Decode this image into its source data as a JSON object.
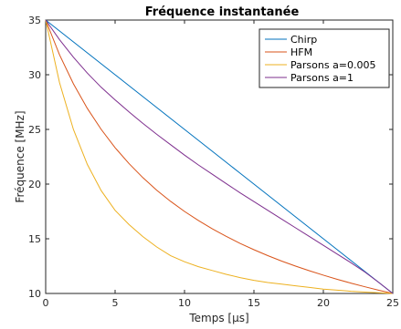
{
  "chart_data": {
    "type": "line",
    "title": "Fréquence instantanée",
    "xlabel": "Temps [µs]",
    "ylabel": "Fréquence [MHz]",
    "xlim": [
      0,
      25
    ],
    "ylim": [
      10,
      35
    ],
    "xticks": [
      "0",
      "5",
      "10",
      "15",
      "20",
      "25"
    ],
    "yticks": [
      "10",
      "15",
      "20",
      "25",
      "30",
      "35"
    ],
    "grid": false,
    "legend_position": "top-right",
    "x": [
      0,
      1,
      2,
      3,
      4,
      5,
      6,
      7,
      8,
      9,
      10,
      11,
      12,
      13,
      14,
      15,
      16,
      17,
      18,
      19,
      20,
      21,
      22,
      23,
      24,
      25
    ],
    "series": [
      {
        "name": "Chirp",
        "color": "#0072bd",
        "values": [
          35.0,
          34.0,
          33.0,
          32.0,
          31.0,
          30.0,
          29.0,
          28.0,
          27.0,
          26.0,
          25.0,
          24.0,
          23.0,
          22.0,
          21.0,
          20.0,
          19.0,
          18.0,
          17.0,
          16.0,
          15.0,
          14.0,
          13.0,
          12.0,
          11.0,
          10.0
        ]
      },
      {
        "name": "HFM",
        "color": "#d95319",
        "values": [
          35.0,
          31.82,
          29.17,
          26.92,
          25.0,
          23.33,
          21.88,
          20.59,
          19.44,
          18.42,
          17.5,
          16.67,
          15.91,
          15.22,
          14.58,
          14.0,
          13.46,
          12.96,
          12.5,
          12.07,
          11.67,
          11.29,
          10.94,
          10.61,
          10.29,
          10.0
        ]
      },
      {
        "name": "Parsons a=0.005",
        "color": "#edb120",
        "values": [
          35.0,
          29.27,
          24.99,
          21.8,
          19.4,
          17.6,
          16.3,
          15.2,
          14.25,
          13.45,
          12.9,
          12.45,
          12.1,
          11.75,
          11.45,
          11.2,
          11.0,
          10.85,
          10.7,
          10.55,
          10.4,
          10.3,
          10.2,
          10.13,
          10.06,
          10.0
        ]
      },
      {
        "name": "Parsons a=1",
        "color": "#7e2f8e",
        "values": [
          35.0,
          33.2,
          31.6,
          30.15,
          28.85,
          27.7,
          26.6,
          25.55,
          24.55,
          23.6,
          22.65,
          21.75,
          20.9,
          20.05,
          19.2,
          18.4,
          17.6,
          16.8,
          16.0,
          15.2,
          14.4,
          13.6,
          12.8,
          11.95,
          11.0,
          10.0
        ]
      }
    ]
  }
}
